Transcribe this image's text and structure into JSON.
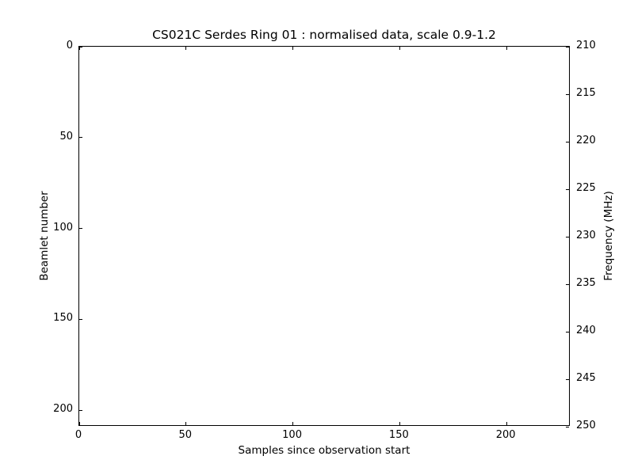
{
  "figure": {
    "background": "#ffffff",
    "frame_color": "#000000",
    "text_color": "#000000"
  },
  "chart_data": {
    "type": "heatmap",
    "title": "CS021C Serdes Ring 01 : normalised data, scale 0.9-1.2",
    "xlabel": "Samples since observation start",
    "ylabel_left": "Beamlet number",
    "ylabel_right": "Frequency (MHz)",
    "xlim": [
      0,
      230
    ],
    "x_ticks": [
      0,
      50,
      100,
      150,
      200
    ],
    "ylim_left": [
      0,
      209
    ],
    "y_left_inverted": true,
    "y_ticks_left": [
      0,
      50,
      100,
      150,
      200
    ],
    "ylim_right": [
      210,
      250
    ],
    "y_ticks_right": [
      210,
      215,
      220,
      225,
      230,
      235,
      240,
      245,
      250
    ],
    "tick_direction": "in",
    "grid": false,
    "legend": null,
    "values": []
  }
}
